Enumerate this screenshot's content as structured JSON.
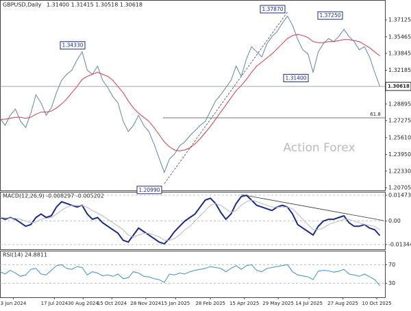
{
  "chart_data": [
    {
      "type": "line",
      "title": "GBPUSD,Daily",
      "subtitle": "1.31400 1.31415 1.30518 1.30618",
      "watermark": "Action Forex",
      "x": [
        0,
        5,
        10,
        15,
        20,
        25,
        30,
        35,
        40,
        45,
        50,
        55,
        60,
        65,
        70,
        75,
        80,
        85,
        90,
        95,
        100,
        105,
        110,
        115,
        120,
        125,
        130,
        135,
        140,
        145,
        150,
        155,
        160,
        165,
        170,
        175,
        180,
        185,
        190,
        195,
        200,
        205,
        210,
        215,
        220,
        225,
        230,
        235,
        240,
        245,
        250,
        255,
        260,
        265,
        270,
        275,
        280,
        285,
        290,
        295,
        300,
        305,
        310,
        315,
        320,
        325,
        330,
        335,
        340,
        345,
        350,
        355,
        360,
        365,
        370
      ],
      "series": [
        {
          "name": "Price",
          "color": "#5f85a6",
          "values": [
            1.275,
            1.268,
            1.278,
            1.284,
            1.272,
            1.266,
            1.28,
            1.298,
            1.29,
            1.278,
            1.285,
            1.3,
            1.312,
            1.318,
            1.322,
            1.332,
            1.34,
            1.322,
            1.318,
            1.326,
            1.312,
            1.305,
            1.296,
            1.29,
            1.272,
            1.262,
            1.268,
            1.278,
            1.268,
            1.262,
            1.25,
            1.236,
            1.222,
            1.235,
            1.24,
            1.248,
            1.252,
            1.258,
            1.263,
            1.268,
            1.272,
            1.282,
            1.292,
            1.298,
            1.305,
            1.312,
            1.326,
            1.316,
            1.333,
            1.345,
            1.34,
            1.335,
            1.348,
            1.355,
            1.36,
            1.368,
            1.375,
            1.366,
            1.352,
            1.342,
            1.338,
            1.32,
            1.34,
            1.348,
            1.353,
            1.35,
            1.355,
            1.362,
            1.355,
            1.35,
            1.342,
            1.345,
            1.335,
            1.32,
            1.30618
          ]
        },
        {
          "name": "MA",
          "color": "#e0393e",
          "values": [
            1.274,
            1.274,
            1.275,
            1.276,
            1.276,
            1.275,
            1.276,
            1.279,
            1.281,
            1.281,
            1.282,
            1.285,
            1.289,
            1.294,
            1.3,
            1.306,
            1.313,
            1.316,
            1.318,
            1.32,
            1.318,
            1.316,
            1.312,
            1.306,
            1.3,
            1.292,
            1.285,
            1.28,
            1.276,
            1.272,
            1.266,
            1.259,
            1.252,
            1.247,
            1.244,
            1.243,
            1.244,
            1.246,
            1.25,
            1.255,
            1.261,
            1.267,
            1.274,
            1.281,
            1.288,
            1.295,
            1.302,
            1.307,
            1.313,
            1.32,
            1.326,
            1.33,
            1.334,
            1.338,
            1.343,
            1.348,
            1.353,
            1.356,
            1.357,
            1.356,
            1.354,
            1.35,
            1.349,
            1.349,
            1.35,
            1.35,
            1.351,
            1.352,
            1.352,
            1.351,
            1.35,
            1.347,
            1.344,
            1.34,
            1.336
          ]
        }
      ],
      "xlim": [
        0,
        375
      ],
      "ylim": [
        1.2044,
        1.3907
      ],
      "yticks": [
        1.37125,
        1.35465,
        1.33845,
        1.32185,
        1.28895,
        1.27275,
        {
          "value": 1.2561,
          "label": "1.25610"
        },
        {
          "value": 1.2395,
          "label": "1.23950"
        },
        {
          "value": 1.2233,
          "label": "1.22330"
        },
        1.20705
      ],
      "current_price": {
        "value": 1.30618,
        "label": "1.30618"
      },
      "annotations": [
        {
          "value": 1.3433,
          "label": "1.34330"
        },
        {
          "value": 1.2099,
          "label": "1.20990"
        },
        {
          "value": 1.3787,
          "label": "1.37870"
        },
        {
          "value": 1.3725,
          "label": "1.37250"
        },
        {
          "value": 1.314,
          "label": "1.31400"
        }
      ],
      "fib_label": 61.8
    },
    {
      "type": "line",
      "title": "MACD(12,26,9) -0.008297 -0.005202",
      "x": [
        0,
        5,
        10,
        15,
        20,
        25,
        30,
        35,
        40,
        45,
        50,
        55,
        60,
        65,
        70,
        75,
        80,
        85,
        90,
        95,
        100,
        105,
        110,
        115,
        120,
        125,
        130,
        135,
        140,
        145,
        150,
        155,
        160,
        165,
        170,
        175,
        180,
        185,
        190,
        195,
        200,
        205,
        210,
        215,
        220,
        225,
        230,
        235,
        240,
        245,
        250,
        255,
        260,
        265,
        270,
        275,
        280,
        285,
        290,
        295,
        300,
        305,
        310,
        315,
        320,
        325,
        330,
        335,
        340,
        345,
        350,
        355,
        360,
        365,
        370
      ],
      "series": [
        {
          "name": "MACD",
          "color": "#1a2a8a",
          "values": [
            0.002,
            0.001,
            0.002,
            0.001,
            -0.001,
            -0.003,
            -0.002,
            0.002,
            0.004,
            0.002,
            0.003,
            0.008,
            0.011,
            0.01,
            0.009,
            0.008,
            0.009,
            0.004,
            0.001,
            0.002,
            -0.001,
            -0.003,
            -0.005,
            -0.007,
            -0.011,
            -0.012,
            -0.008,
            -0.004,
            -0.006,
            -0.008,
            -0.01,
            -0.012,
            -0.013,
            -0.01,
            -0.006,
            -0.003,
            0.0,
            0.002,
            0.004,
            0.008,
            0.012,
            0.013,
            0.01,
            0.005,
            0.001,
            0.004,
            0.01,
            0.014,
            0.0147,
            0.012,
            0.009,
            0.008,
            0.007,
            0.006,
            0.008,
            0.009,
            0.008,
            0.004,
            -0.002,
            -0.004,
            -0.006,
            -0.008,
            -0.003,
            0.0,
            0.001,
            0.001,
            0.002,
            0.003,
            -0.001,
            -0.003,
            -0.003,
            -0.002,
            -0.004,
            -0.005,
            -0.008297
          ]
        },
        {
          "name": "Signal",
          "color": "#b8b8c8",
          "values": [
            0.002,
            0.0018,
            0.0017,
            0.0015,
            0.001,
            0.0,
            -0.001,
            -0.0005,
            0.001,
            0.0015,
            0.002,
            0.004,
            0.006,
            0.008,
            0.009,
            0.0088,
            0.0088,
            0.0078,
            0.006,
            0.0045,
            0.003,
            0.001,
            -0.001,
            -0.003,
            -0.005,
            -0.008,
            -0.009,
            -0.008,
            -0.007,
            -0.007,
            -0.008,
            -0.009,
            -0.011,
            -0.011,
            -0.01,
            -0.008,
            -0.005,
            -0.003,
            0.0,
            0.003,
            0.006,
            0.009,
            0.01,
            0.009,
            0.007,
            0.005,
            0.006,
            0.009,
            0.011,
            0.012,
            0.011,
            0.01,
            0.009,
            0.008,
            0.008,
            0.008,
            0.008,
            0.007,
            0.004,
            0.001,
            -0.002,
            -0.005,
            -0.005,
            -0.004,
            -0.002,
            -0.001,
            0.0,
            0.001,
            0.001,
            0.0,
            -0.001,
            -0.002,
            -0.0025,
            -0.003,
            -0.005202
          ]
        }
      ],
      "xlim": [
        0,
        375
      ],
      "ylim": [
        -0.01618,
        0.01669
      ],
      "yticks": [
        0.014734,
        {
          "value": 0,
          "label": "0.00"
        },
        -0.013442
      ]
    },
    {
      "type": "line",
      "title": "RSI(14) 24.8811",
      "x": [
        0,
        5,
        10,
        15,
        20,
        25,
        30,
        35,
        40,
        45,
        50,
        55,
        60,
        65,
        70,
        75,
        80,
        85,
        90,
        95,
        100,
        105,
        110,
        115,
        120,
        125,
        130,
        135,
        140,
        145,
        150,
        155,
        160,
        165,
        170,
        175,
        180,
        185,
        190,
        195,
        200,
        205,
        210,
        215,
        220,
        225,
        230,
        235,
        240,
        245,
        250,
        255,
        260,
        265,
        270,
        275,
        280,
        285,
        290,
        295,
        300,
        305,
        310,
        315,
        320,
        325,
        330,
        335,
        340,
        345,
        350,
        355,
        360,
        365,
        370
      ],
      "series": [
        {
          "name": "RSI",
          "color": "#3a8fd6",
          "values": [
            55,
            50,
            58,
            52,
            45,
            48,
            60,
            62,
            50,
            48,
            58,
            68,
            70,
            62,
            60,
            66,
            64,
            48,
            55,
            52,
            46,
            48,
            45,
            50,
            40,
            42,
            55,
            52,
            45,
            44,
            40,
            38,
            32,
            50,
            48,
            52,
            50,
            55,
            58,
            60,
            62,
            66,
            64,
            62,
            55,
            62,
            68,
            60,
            68,
            70,
            58,
            55,
            62,
            64,
            66,
            68,
            70,
            55,
            48,
            46,
            44,
            38,
            56,
            58,
            57,
            54,
            56,
            60,
            50,
            48,
            45,
            50,
            44,
            38,
            24.8811
          ]
        }
      ],
      "xlim": [
        0,
        375
      ],
      "ylim": [
        0,
        100
      ],
      "yticks": [
        70,
        30
      ],
      "xticks": [
        {
          "value": 13,
          "label": "3 Jun 2024"
        },
        {
          "value": 53,
          "label": "17 Jul 2024"
        },
        {
          "value": 81,
          "label": "30 Aug 2024"
        },
        {
          "value": 109,
          "label": "15 Oct 2024"
        },
        {
          "value": 142,
          "label": "28 Nov 2024"
        },
        {
          "value": 171,
          "label": "15 Jan 2025"
        },
        {
          "value": 205,
          "label": "28 Feb 2025"
        },
        {
          "value": 238,
          "label": "15 Apr 2025"
        },
        {
          "value": 271,
          "label": "29 May 2025"
        },
        {
          "value": 301,
          "label": "14 Jul 2025"
        },
        {
          "value": 334,
          "label": "27 Aug 2025"
        },
        {
          "value": 367,
          "label": "10 Oct 2025"
        }
      ]
    }
  ]
}
